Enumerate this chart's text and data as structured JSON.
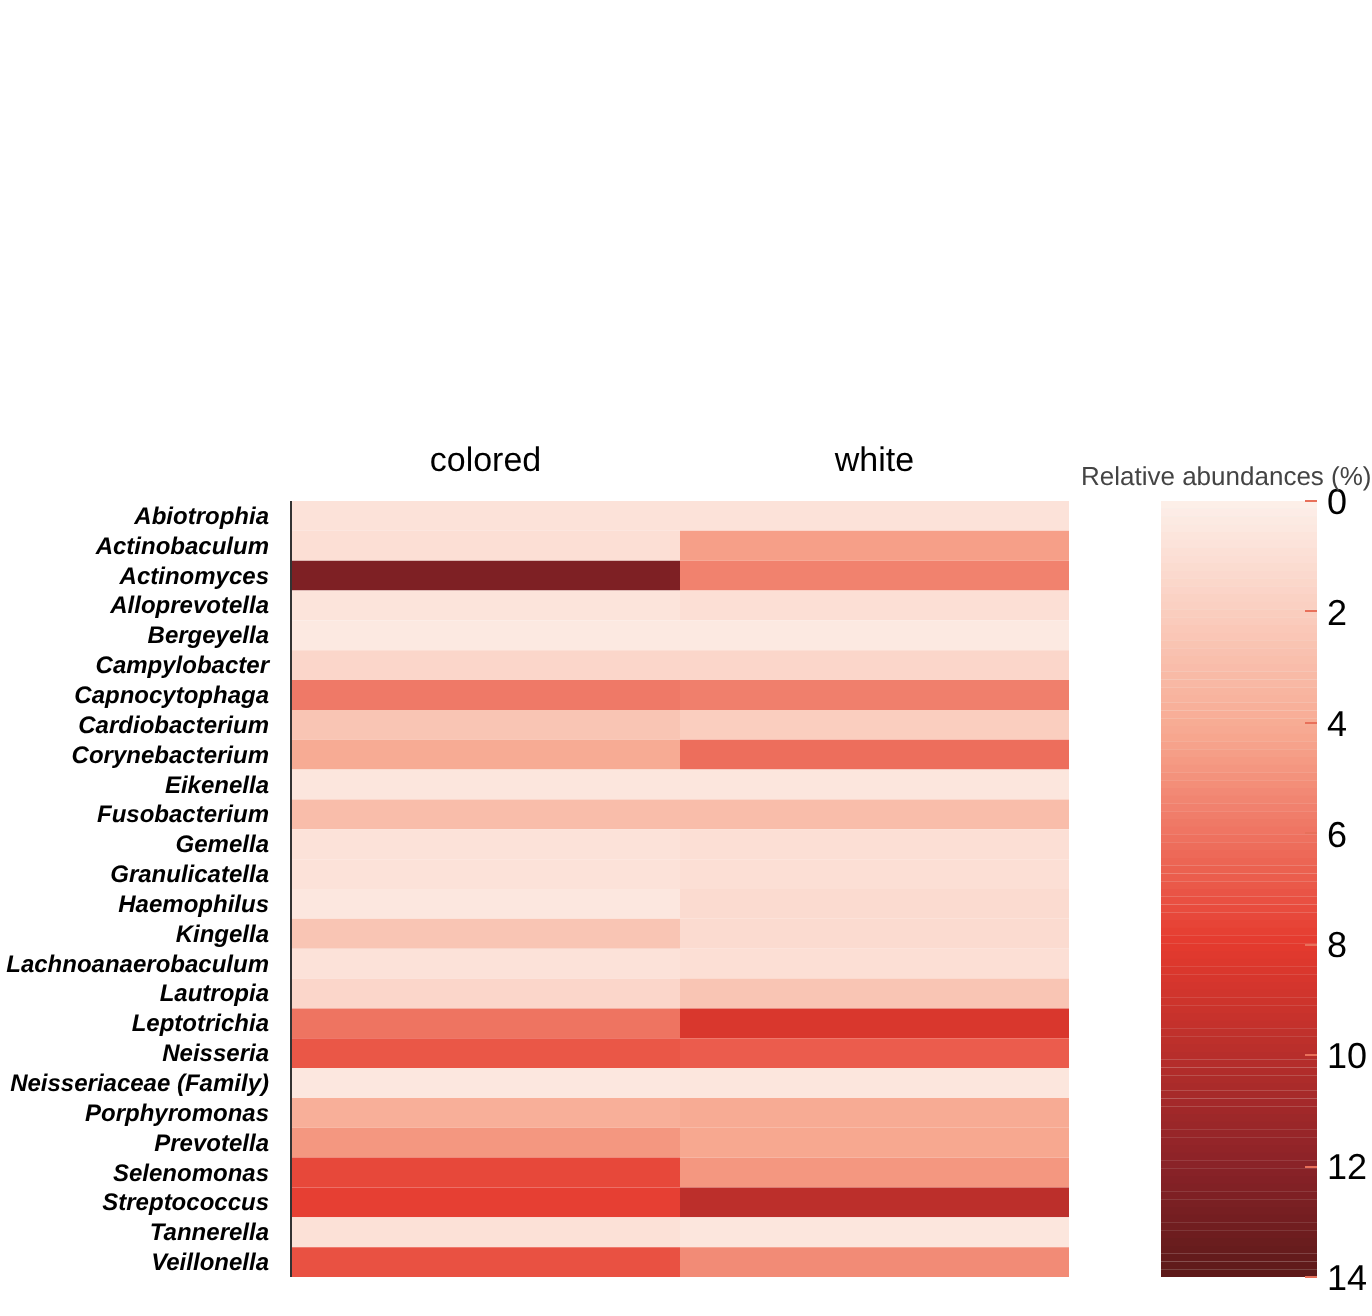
{
  "chart_data": {
    "type": "heatmap",
    "clabel": "Relative abundances (%)",
    "categories": [
      "colored",
      "white"
    ],
    "y_categories": [
      "Abiotrophia",
      "Actinobaculum",
      "Actinomyces",
      "Alloprevotella",
      "Bergeyella",
      "Campylobacter",
      "Capnocytophaga",
      "Cardiobacterium",
      "Corynebacterium",
      "Eikenella",
      "Fusobacterium",
      "Gemella",
      "Granulicatella",
      "Haemophilus",
      "Kingella",
      "Lachnoanaerobaculum",
      "Lautropia",
      "Leptotrichia",
      "Neisseria",
      "Neisseriaceae (Family)",
      "Porphyromonas",
      "Prevotella",
      "Selenomonas",
      "Streptococcus",
      "Tannerella",
      "Veillonella"
    ],
    "cells": [
      [
        0.8,
        0.8
      ],
      [
        1.0,
        4.5
      ],
      [
        12.5,
        5.5
      ],
      [
        0.7,
        1.0
      ],
      [
        0.4,
        0.4
      ],
      [
        1.5,
        1.5
      ],
      [
        5.8,
        5.6
      ],
      [
        2.5,
        2.0
      ],
      [
        4.0,
        6.2
      ],
      [
        0.6,
        0.6
      ],
      [
        3.0,
        3.0
      ],
      [
        0.8,
        1.0
      ],
      [
        0.8,
        1.0
      ],
      [
        0.5,
        1.2
      ],
      [
        2.5,
        1.2
      ],
      [
        0.8,
        1.0
      ],
      [
        1.5,
        2.5
      ],
      [
        6.0,
        8.5
      ],
      [
        7.0,
        6.8
      ],
      [
        0.5,
        0.6
      ],
      [
        3.8,
        4.0
      ],
      [
        4.8,
        4.2
      ],
      [
        7.5,
        4.8
      ],
      [
        7.8,
        9.8
      ],
      [
        0.9,
        0.6
      ],
      [
        7.2,
        5.2
      ]
    ],
    "clim": [
      0,
      14
    ],
    "cticks": [
      0,
      2,
      4,
      6,
      8,
      10,
      12,
      14
    ]
  }
}
